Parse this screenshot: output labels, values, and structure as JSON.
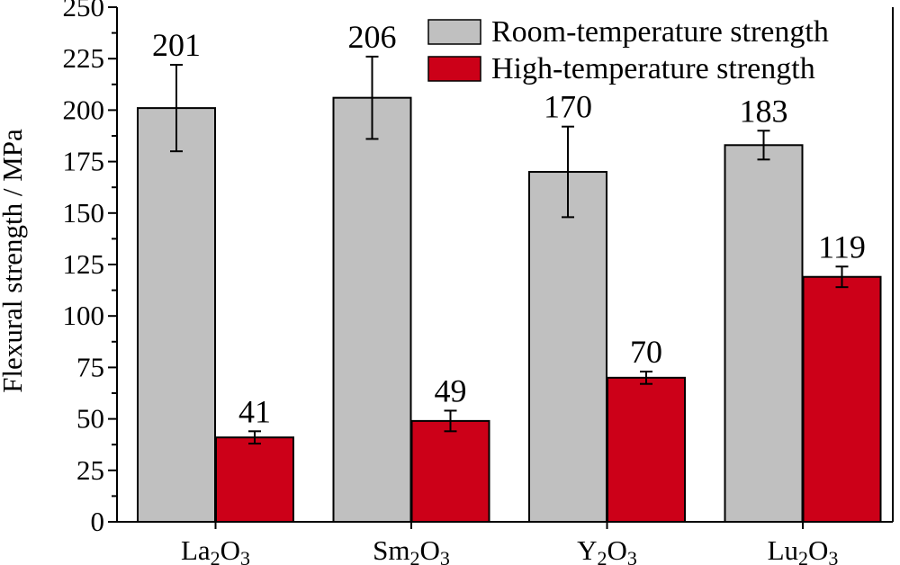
{
  "chart_data": {
    "type": "bar",
    "xlabel": "",
    "ylabel": "Flexural strength / MPa",
    "ylim": [
      0,
      250
    ],
    "yticks": [
      0,
      25,
      50,
      75,
      100,
      125,
      150,
      175,
      200,
      225,
      250
    ],
    "categories": [
      {
        "base": "La",
        "sub1": "2",
        "mid": "O",
        "sub2": "3"
      },
      {
        "base": "Sm",
        "sub1": "2",
        "mid": "O",
        "sub2": "3"
      },
      {
        "base": "Y",
        "sub1": "2",
        "mid": "O",
        "sub2": "3"
      },
      {
        "base": "Lu",
        "sub1": "2",
        "mid": "O",
        "sub2": "3"
      }
    ],
    "series": [
      {
        "name": "Room-temperature strength",
        "color": "#c0c0c0",
        "values": [
          201,
          206,
          170,
          183
        ],
        "errors": [
          21,
          20,
          22,
          7
        ],
        "labels": [
          "201",
          "206",
          "170",
          "183"
        ]
      },
      {
        "name": "High-temperature strength",
        "color": "#cc0018",
        "values": [
          41,
          49,
          70,
          119
        ],
        "errors": [
          3,
          5,
          3,
          5
        ],
        "labels": [
          "41",
          "49",
          "70",
          "119"
        ]
      }
    ],
    "legend": "top-right",
    "grid": false
  }
}
